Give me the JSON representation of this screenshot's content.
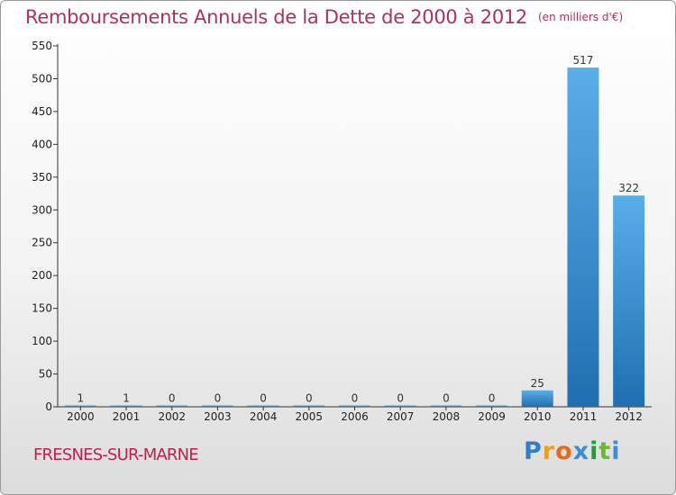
{
  "header": {
    "title": "Remboursements Annuels de la Dette de 2000 à 2012",
    "subtitle": "(en milliers d'€)"
  },
  "footer": {
    "location": "FRESNES-SUR-MARNE",
    "brand_letters": [
      "P",
      "r",
      "o",
      "x",
      "i",
      "t",
      "i"
    ]
  },
  "colors": {
    "title": "#b0305a",
    "bar_light": "#5aaee8",
    "bar_dark": "#1f6fb0",
    "axis": "#333333"
  },
  "chart_data": {
    "type": "bar",
    "title": "Remboursements Annuels de la Dette de 2000 à 2012",
    "xlabel": "",
    "ylabel": "",
    "categories": [
      "2000",
      "2001",
      "2002",
      "2003",
      "2004",
      "2005",
      "2006",
      "2007",
      "2008",
      "2009",
      "2010",
      "2011",
      "2012"
    ],
    "values": [
      1,
      1,
      0,
      0,
      0,
      0,
      0,
      0,
      0,
      0,
      25,
      517,
      322
    ],
    "ylim": [
      0,
      550
    ],
    "yticks": [
      0,
      50,
      100,
      150,
      200,
      250,
      300,
      350,
      400,
      450,
      500,
      550
    ],
    "grid": false,
    "legend": "none"
  }
}
